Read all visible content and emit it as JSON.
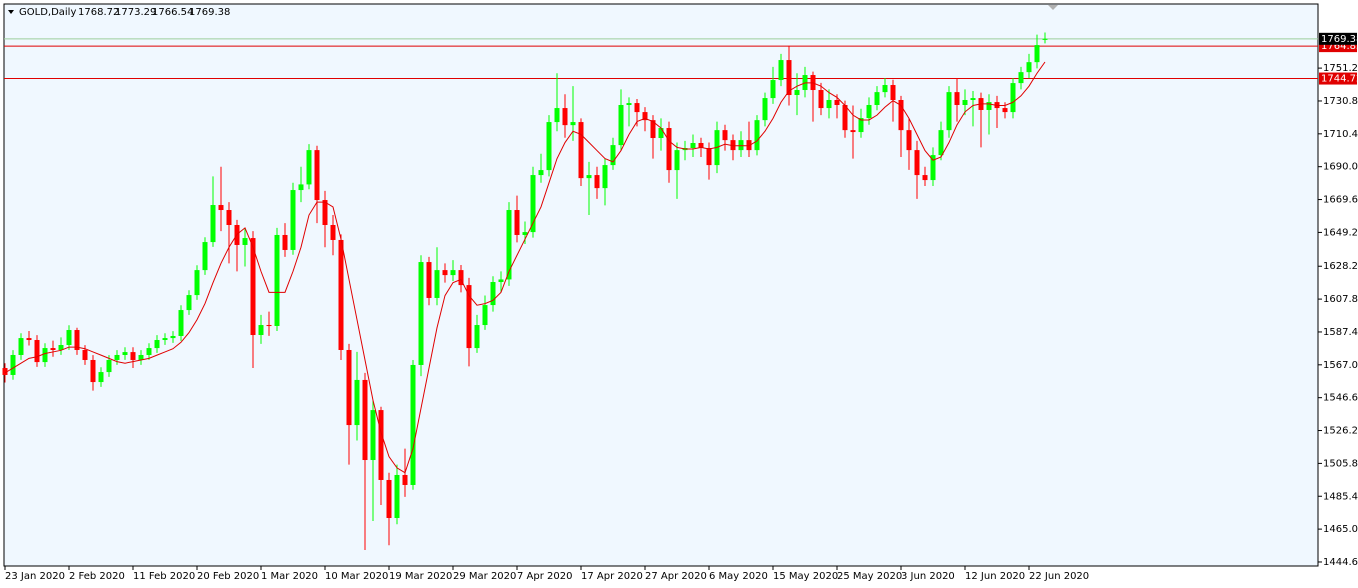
{
  "chart_data": {
    "type": "candlestick",
    "title": "GOLD,Daily",
    "categories": [
      "23 Jan 2020",
      null,
      null,
      null,
      null,
      null,
      null,
      null,
      "2 Feb 2020",
      null,
      null,
      null,
      null,
      null,
      null,
      null,
      "11 Feb 2020",
      null,
      null,
      null,
      null,
      null,
      null,
      null,
      "20 Feb 2020",
      null,
      null,
      null,
      null,
      null,
      null,
      null,
      "1 Mar 2020",
      null,
      null,
      null,
      null,
      null,
      null,
      null,
      "10 Mar 2020",
      null,
      null,
      null,
      null,
      null,
      null,
      null,
      "19 Mar 2020",
      null,
      null,
      null,
      null,
      null,
      null,
      null,
      "29 Mar 2020",
      null,
      null,
      null,
      null,
      null,
      null,
      null,
      "7 Apr 2020",
      null,
      null,
      null,
      null,
      null,
      null,
      null,
      "17 Apr 2020",
      null,
      null,
      null,
      null,
      null,
      null,
      null,
      "27 Apr 2020",
      null,
      null,
      null,
      null,
      null,
      null,
      null,
      "6 May 2020",
      null,
      null,
      null,
      null,
      null,
      null,
      null,
      "15 May 2020",
      null,
      null,
      null,
      null,
      null,
      null,
      null,
      "25 May 2020",
      null,
      null,
      null,
      null,
      null,
      null,
      null,
      "3 Jun 2020",
      null,
      null,
      null,
      null,
      null,
      null,
      null,
      "12 Jun 2020",
      null,
      null,
      null,
      null,
      null,
      null,
      null,
      "22 Jun 2020",
      null,
      null
    ],
    "ohlc": {
      "open": [
        1565.0,
        1560.7,
        1573.1,
        1583.6,
        1582.4,
        1568.7,
        1577.4,
        1576.2,
        1579.3,
        1588.6,
        1576.2,
        1570.0,
        1556.3,
        1562.5,
        1570.0,
        1573.1,
        1574.9,
        1570.0,
        1573.1,
        1577.4,
        1582.4,
        1583.6,
        1584.9,
        1601.0,
        1610.3,
        1625.8,
        1643.2,
        1666.2,
        1663.1,
        1653.8,
        1641.4,
        1645.7,
        1585.5,
        1591.7,
        1591.1,
        1647.6,
        1638.3,
        1675.5,
        1679.0,
        1700.3,
        1669.3,
        1653.8,
        1644.5,
        1576.2,
        1529.6,
        1557.6,
        1507.9,
        1538.9,
        1495.5,
        1471.9,
        1498.6,
        1492.4,
        1566.9,
        1630.8,
        1608.5,
        1625.8,
        1622.7,
        1625.8,
        1616.5,
        1577.4,
        1591.7,
        1604.1,
        1618.4,
        1620.0,
        1663.1,
        1647.6,
        1649.4,
        1684.8,
        1687.9,
        1717.7,
        1726.4,
        1715.8,
        1717.7,
        1682.9,
        1684.8,
        1676.7,
        1691.0,
        1703.4,
        1728.3,
        1729.5,
        1723.9,
        1718.9,
        1707.8,
        1714.0,
        1687.9,
        1700.3,
        1701.6,
        1704.7,
        1701.6,
        1691.0,
        1712.7,
        1706.5,
        1700.3,
        1706.5,
        1700.3,
        1718.9,
        1732.6,
        1743.8,
        1756.2,
        1734.5,
        1737.6,
        1746.9,
        1737.6,
        1726.4,
        1731.4,
        1728.3,
        1712.7,
        1711.5,
        1720.2,
        1728.3,
        1736.3,
        1740.7,
        1731.4,
        1712.7,
        1700.3,
        1684.8,
        1681.7,
        1697.2,
        1712.7,
        1736.3,
        1728.3,
        1731.4,
        1732.6,
        1725.2,
        1730.1,
        1726.4,
        1723.9,
        1741.9,
        1748.7,
        1754.9,
        1768.72
      ],
      "high": [
        1568.0,
        1576.1,
        1586.6,
        1588.0,
        1585.4,
        1580.4,
        1582.0,
        1584.0,
        1591.6,
        1590.0,
        1579.2,
        1573.0,
        1565.5,
        1573.0,
        1576.1,
        1577.9,
        1577.9,
        1576.1,
        1580.4,
        1585.4,
        1586.6,
        1587.9,
        1604.0,
        1613.3,
        1628.8,
        1646.2,
        1684.0,
        1690.0,
        1668.0,
        1657.0,
        1652.0,
        1650.0,
        1598.0,
        1600.0,
        1652.0,
        1655.0,
        1680.0,
        1690.0,
        1704.0,
        1703.0,
        1675.0,
        1660.0,
        1648.0,
        1580.0,
        1575.0,
        1562.0,
        1545.0,
        1541.0,
        1500.0,
        1505.0,
        1515.0,
        1570.0,
        1635.0,
        1634.0,
        1640.0,
        1630.0,
        1632.0,
        1629.0,
        1621.0,
        1598.0,
        1610.0,
        1622.0,
        1625.0,
        1668.0,
        1672.0,
        1656.0,
        1690.0,
        1698.0,
        1722.0,
        1748.0,
        1735.0,
        1740.0,
        1720.0,
        1693.0,
        1690.0,
        1695.0,
        1708.0,
        1738.0,
        1733.0,
        1732.0,
        1727.0,
        1722.0,
        1720.0,
        1718.0,
        1705.0,
        1706.0,
        1710.0,
        1708.0,
        1705.0,
        1718.0,
        1716.0,
        1710.0,
        1712.0,
        1718.0,
        1722.0,
        1736.0,
        1752.0,
        1760.0,
        1765.0,
        1748.0,
        1752.0,
        1749.0,
        1742.0,
        1738.0,
        1735.0,
        1731.0,
        1728.0,
        1726.0,
        1733.0,
        1740.0,
        1745.0,
        1744.0,
        1734.0,
        1720.0,
        1706.0,
        1690.0,
        1702.0,
        1718.0,
        1740.0,
        1745.0,
        1738.0,
        1737.0,
        1736.0,
        1735.0,
        1734.0,
        1730.0,
        1745.0,
        1752.0,
        1760.0,
        1772.0,
        1773.29
      ],
      "low": [
        1556.0,
        1557.7,
        1570.1,
        1579.0,
        1565.7,
        1565.7,
        1572.0,
        1573.2,
        1576.3,
        1573.2,
        1567.0,
        1551.0,
        1553.3,
        1559.5,
        1567.0,
        1570.1,
        1565.0,
        1567.0,
        1570.1,
        1574.4,
        1579.4,
        1580.6,
        1581.9,
        1598.0,
        1607.3,
        1622.8,
        1640.2,
        1650.0,
        1630.0,
        1625.0,
        1628.0,
        1565.0,
        1580.0,
        1585.0,
        1588.0,
        1634.0,
        1635.3,
        1668.0,
        1676.0,
        1655.0,
        1640.0,
        1635.0,
        1570.0,
        1505.0,
        1520.0,
        1452.0,
        1470.0,
        1480.0,
        1455.0,
        1468.0,
        1485.0,
        1489.4,
        1560.0,
        1604.0,
        1604.0,
        1618.0,
        1619.0,
        1612.0,
        1566.0,
        1574.4,
        1588.7,
        1600.0,
        1612.0,
        1616.0,
        1643.0,
        1642.0,
        1646.0,
        1680.0,
        1684.0,
        1712.0,
        1708.0,
        1706.0,
        1678.0,
        1660.0,
        1670.0,
        1666.0,
        1688.0,
        1700.0,
        1715.0,
        1715.0,
        1712.0,
        1695.0,
        1700.0,
        1680.0,
        1670.0,
        1694.0,
        1696.0,
        1696.0,
        1682.0,
        1686.0,
        1700.0,
        1694.0,
        1696.0,
        1696.0,
        1697.0,
        1715.0,
        1729.0,
        1740.0,
        1728.0,
        1722.0,
        1733.0,
        1718.0,
        1722.0,
        1720.0,
        1720.0,
        1708.0,
        1695.0,
        1708.0,
        1716.0,
        1725.0,
        1733.0,
        1718.0,
        1696.0,
        1688.0,
        1670.0,
        1678.0,
        1678.0,
        1694.0,
        1708.0,
        1718.0,
        1722.0,
        1715.0,
        1702.0,
        1710.0,
        1714.0,
        1720.0,
        1720.0,
        1738.0,
        1745.0,
        1751.0,
        1766.54
      ],
      "close": [
        1560.7,
        1573.1,
        1583.6,
        1582.4,
        1568.7,
        1577.4,
        1576.2,
        1579.3,
        1588.6,
        1576.2,
        1570.0,
        1556.3,
        1562.5,
        1570.0,
        1573.1,
        1574.9,
        1570.0,
        1573.1,
        1577.4,
        1582.4,
        1583.6,
        1584.9,
        1601.0,
        1610.3,
        1625.8,
        1643.2,
        1666.2,
        1663.1,
        1653.8,
        1641.4,
        1645.7,
        1585.5,
        1591.7,
        1591.1,
        1647.6,
        1638.3,
        1675.5,
        1679.0,
        1700.3,
        1669.3,
        1653.8,
        1644.5,
        1576.2,
        1529.6,
        1557.6,
        1507.9,
        1538.9,
        1495.5,
        1471.9,
        1498.6,
        1492.4,
        1566.9,
        1630.8,
        1608.5,
        1625.8,
        1622.7,
        1625.8,
        1616.5,
        1577.4,
        1591.7,
        1604.1,
        1618.4,
        1620.0,
        1663.1,
        1647.6,
        1649.4,
        1684.8,
        1687.9,
        1717.7,
        1726.4,
        1715.8,
        1717.7,
        1682.9,
        1684.8,
        1676.7,
        1691.0,
        1703.4,
        1728.3,
        1729.5,
        1723.9,
        1718.9,
        1707.8,
        1714.0,
        1687.9,
        1700.3,
        1701.6,
        1704.7,
        1701.6,
        1691.0,
        1712.7,
        1706.5,
        1700.3,
        1706.5,
        1700.3,
        1718.9,
        1732.6,
        1743.8,
        1756.2,
        1734.5,
        1737.6,
        1746.9,
        1737.6,
        1726.4,
        1731.4,
        1728.3,
        1712.7,
        1711.5,
        1720.2,
        1728.3,
        1736.3,
        1740.7,
        1731.4,
        1712.7,
        1700.3,
        1684.8,
        1681.7,
        1697.2,
        1712.7,
        1736.3,
        1728.3,
        1731.4,
        1732.6,
        1725.2,
        1730.1,
        1726.4,
        1723.9,
        1741.9,
        1748.7,
        1754.9,
        1765.5,
        1769.38
      ]
    },
    "up_color": "#00ff00",
    "down_color": "#ff0000",
    "moving_average": {
      "color": "#e00000",
      "values": [
        1562,
        1565,
        1568,
        1571,
        1572,
        1574,
        1575,
        1576,
        1578,
        1578,
        1577,
        1575,
        1573,
        1571,
        1569,
        1568,
        1569,
        1570,
        1571,
        1573,
        1575,
        1577,
        1581,
        1587,
        1595,
        1605,
        1618,
        1630,
        1640,
        1648,
        1652,
        1640,
        1625,
        1612,
        1612,
        1612,
        1625,
        1640,
        1660,
        1668,
        1668,
        1665,
        1645,
        1620,
        1595,
        1570,
        1545,
        1525,
        1510,
        1503,
        1500,
        1515,
        1540,
        1565,
        1590,
        1610,
        1618,
        1620,
        1610,
        1604,
        1605,
        1607,
        1612,
        1625,
        1635,
        1645,
        1655,
        1665,
        1680,
        1695,
        1705,
        1712,
        1710,
        1705,
        1700,
        1695,
        1693,
        1700,
        1710,
        1718,
        1720,
        1718,
        1714,
        1706,
        1702,
        1701,
        1701,
        1702,
        1701,
        1702,
        1704,
        1703,
        1703,
        1703,
        1706,
        1712,
        1720,
        1730,
        1737,
        1740,
        1742,
        1742,
        1740,
        1736,
        1733,
        1728,
        1722,
        1719,
        1719,
        1722,
        1727,
        1731,
        1728,
        1720,
        1710,
        1700,
        1694,
        1696,
        1705,
        1716,
        1724,
        1728,
        1729,
        1729,
        1728,
        1728,
        1730,
        1734,
        1740,
        1748,
        1755
      ]
    },
    "horizontal_lines": [
      {
        "value": 1764.85,
        "color": "#e00000"
      },
      {
        "value": 1744.72,
        "color": "#e00000"
      }
    ],
    "price_line_color": "#9ccf9c",
    "ylim": [
      1442.1,
      1791.0
    ],
    "yticks": [
      {
        "value": 1444.6,
        "label": "1444.60"
      },
      {
        "value": 1465,
        "label": "1465.00"
      },
      {
        "value": 1485.4,
        "label": "1485.40"
      },
      {
        "value": 1505.8,
        "label": "1505.80"
      },
      {
        "value": 1526.2,
        "label": "1526.20"
      },
      {
        "value": 1546.6,
        "label": "1546.60"
      },
      {
        "value": 1567,
        "label": "1567.00"
      },
      {
        "value": 1587.4,
        "label": "1587.40"
      },
      {
        "value": 1607.8,
        "label": "1607.80"
      },
      {
        "value": 1628.2,
        "label": "1628.20"
      },
      {
        "value": 1649.2,
        "label": "1649.20"
      },
      {
        "value": 1669.6,
        "label": "1669.60"
      },
      {
        "value": 1690,
        "label": "1690.00"
      },
      {
        "value": 1710.4,
        "label": "1710.40"
      },
      {
        "value": 1730.8,
        "label": "1730.80"
      },
      {
        "value": 1751.2,
        "label": "1751.20"
      }
    ],
    "grid": false
  }
}
